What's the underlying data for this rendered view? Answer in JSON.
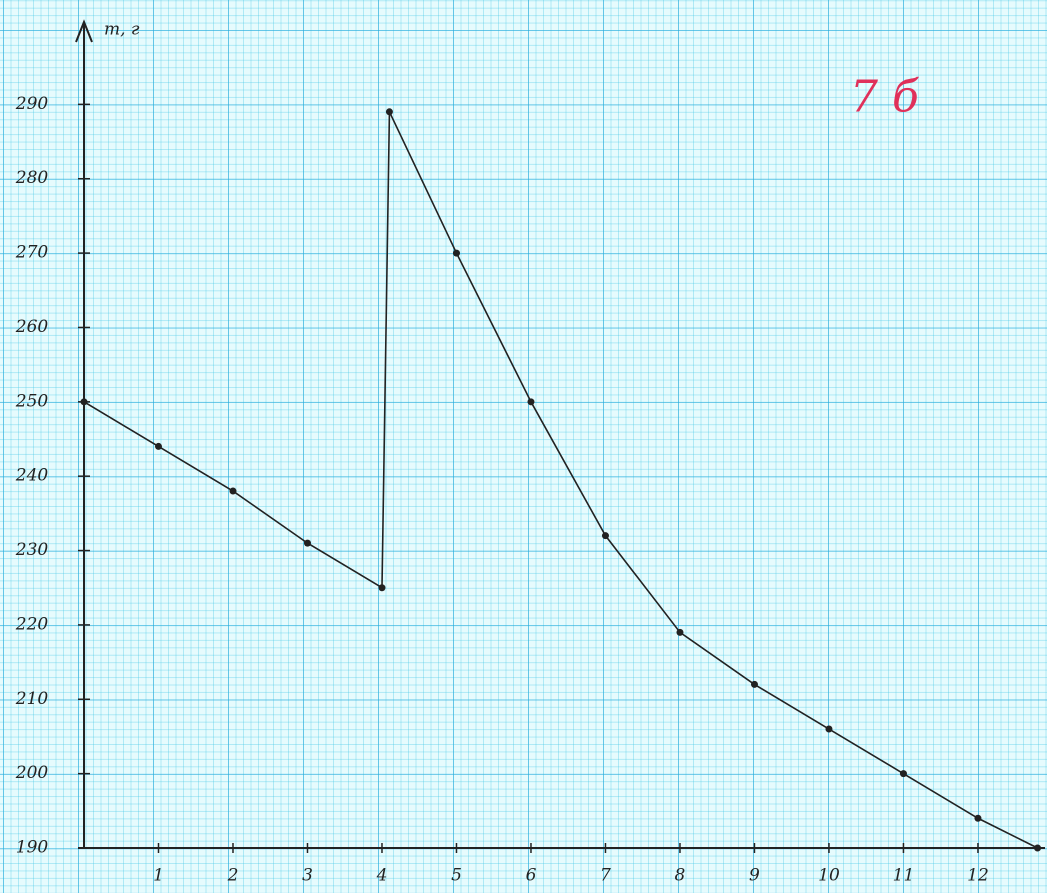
{
  "chart_data": {
    "type": "line",
    "y_label": "m, г",
    "annotation": "7 б",
    "x": [
      0,
      1,
      2,
      3,
      4,
      4.1,
      5,
      6,
      7,
      8,
      9,
      10,
      11,
      12,
      12.8
    ],
    "series": [
      {
        "color": "#222222",
        "values": [
          250,
          244,
          238,
          231,
          225,
          289,
          270,
          250,
          232,
          219,
          212,
          206,
          200,
          194,
          190
        ]
      }
    ],
    "xlim": [
      0,
      12.9
    ],
    "xticks": [
      1,
      2,
      3,
      4,
      5,
      6,
      7,
      8,
      9,
      10,
      11,
      12
    ],
    "ylim": [
      190,
      300
    ],
    "yticks": [
      190,
      200,
      210,
      220,
      230,
      240,
      250,
      260,
      270,
      280,
      290
    ]
  }
}
